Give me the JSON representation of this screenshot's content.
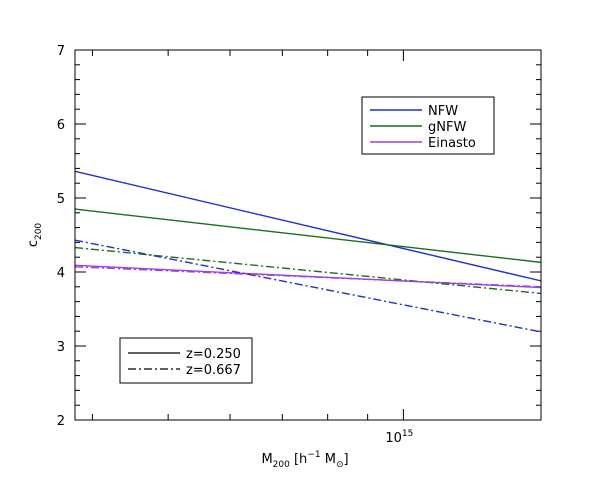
{
  "chart_data": {
    "type": "line",
    "xscale": "log",
    "xlim": [
      380000000000000,
      1500000000000000
    ],
    "ylim": [
      2,
      7
    ],
    "yticks": [
      2,
      3,
      4,
      5,
      6,
      7
    ],
    "xtick_major": {
      "value": 1000000000000000,
      "base": "10",
      "exp": "15"
    },
    "xlabel": {
      "main": "M",
      "sub": "200",
      "unit_pre": "[h",
      "unit_exp": "−1",
      "unit_m": "M",
      "unit_sub": "⊙",
      "unit_post": "]"
    },
    "ylabel": {
      "main": "c",
      "sub": "200"
    },
    "colors": {
      "NFW": "#1f2ed6",
      "gNFW": "#1c6e1c",
      "Einasto": "#a040e0"
    },
    "series": [
      {
        "name": "NFW",
        "z": "0.250",
        "dash": "solid",
        "x": [
          380000000000000,
          1500000000000000
        ],
        "y": [
          5.36,
          3.88
        ]
      },
      {
        "name": "gNFW",
        "z": "0.250",
        "dash": "solid",
        "x": [
          380000000000000,
          1500000000000000
        ],
        "y": [
          4.85,
          4.13
        ]
      },
      {
        "name": "Einasto",
        "z": "0.250",
        "dash": "solid",
        "x": [
          380000000000000,
          1500000000000000
        ],
        "y": [
          4.09,
          3.79
        ]
      },
      {
        "name": "NFW",
        "z": "0.667",
        "dash": "dashdot",
        "x": [
          380000000000000,
          1500000000000000
        ],
        "y": [
          4.43,
          3.19
        ]
      },
      {
        "name": "gNFW",
        "z": "0.667",
        "dash": "dashdot",
        "x": [
          380000000000000,
          1500000000000000
        ],
        "y": [
          4.33,
          3.71
        ]
      },
      {
        "name": "Einasto",
        "z": "0.667",
        "dash": "dashdot",
        "x": [
          380000000000000,
          1500000000000000
        ],
        "y": [
          4.07,
          3.8
        ]
      }
    ],
    "legend_models": [
      {
        "label": "NFW",
        "color": "#1f2ed6"
      },
      {
        "label": "gNFW",
        "color": "#1c6e1c"
      },
      {
        "label": "Einasto",
        "color": "#a040e0"
      }
    ],
    "legend_redshift": [
      {
        "label": "z=0.250",
        "dash": "solid"
      },
      {
        "label": "z=0.667",
        "dash": "dashdot"
      }
    ]
  }
}
